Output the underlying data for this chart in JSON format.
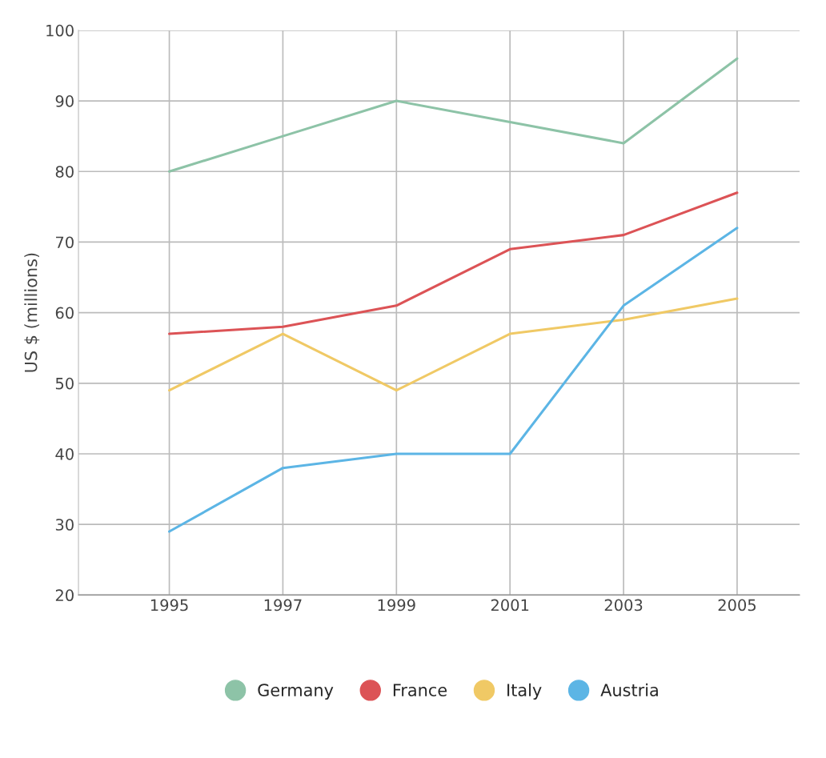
{
  "chart_data": {
    "type": "line",
    "ylabel": "US $ (millions)",
    "x": [
      1995,
      1997,
      1999,
      2001,
      2003,
      2005
    ],
    "series": [
      {
        "name": "Germany",
        "color": "#8dc3a7",
        "values": [
          80,
          85,
          90,
          87,
          84,
          96
        ]
      },
      {
        "name": "France",
        "color": "#dc5356",
        "values": [
          57,
          58,
          61,
          69,
          71,
          77
        ]
      },
      {
        "name": "Italy",
        "color": "#f0c965",
        "values": [
          49,
          57,
          49,
          57,
          59,
          62
        ]
      },
      {
        "name": "Austria",
        "color": "#5cb5e5",
        "values": [
          29,
          38,
          40,
          40,
          61,
          72
        ]
      }
    ],
    "xlim": [
      1993.4,
      2006.1
    ],
    "xticks": [
      1995,
      1997,
      1999,
      2001,
      2003,
      2005
    ],
    "ylim": [
      20,
      100
    ],
    "yticks": [
      20,
      30,
      40,
      50,
      60,
      70,
      80,
      90,
      100
    ],
    "grid": true,
    "legend": "bottom",
    "marker": "none",
    "line_style": "solid"
  }
}
